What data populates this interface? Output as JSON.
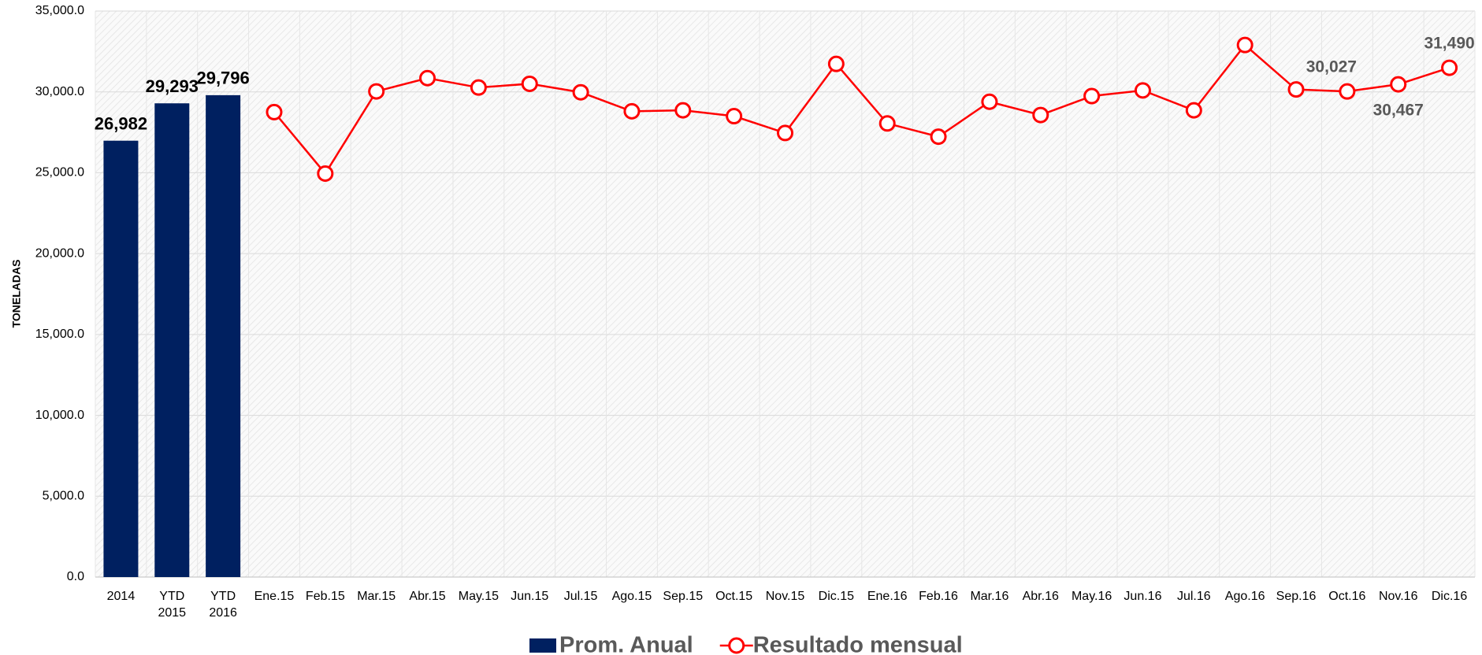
{
  "chart_data": {
    "type": "combo",
    "y_label": "TONELADAS",
    "categories": [
      "2014",
      "YTD 2015",
      "YTD 2016",
      "Ene.15",
      "Feb.15",
      "Mar.15",
      "Abr.15",
      "May.15",
      "Jun.15",
      "Jul.15",
      "Ago.15",
      "Sep.15",
      "Oct.15",
      "Nov.15",
      "Dic.15",
      "Ene.16",
      "Feb.16",
      "Mar.16",
      "Abr.16",
      "May.16",
      "Jun.16",
      "Jul.16",
      "Ago.16",
      "Sep.16",
      "Oct.16",
      "Nov.16",
      "Dic.16"
    ],
    "series": [
      {
        "name": "Prom. Anual",
        "type": "bar",
        "color": "#002060",
        "values": [
          26982,
          29293,
          29796,
          null,
          null,
          null,
          null,
          null,
          null,
          null,
          null,
          null,
          null,
          null,
          null,
          null,
          null,
          null,
          null,
          null,
          null,
          null,
          null,
          null,
          null,
          null,
          null
        ],
        "value_labels": [
          "26,982",
          "29,293",
          "29,796",
          null,
          null,
          null,
          null,
          null,
          null,
          null,
          null,
          null,
          null,
          null,
          null,
          null,
          null,
          null,
          null,
          null,
          null,
          null,
          null,
          null,
          null,
          null,
          null
        ]
      },
      {
        "name": "Resultado mensual",
        "type": "line",
        "color": "#ff0000",
        "values": [
          null,
          null,
          null,
          28750,
          24950,
          30030,
          30850,
          30270,
          30500,
          29975,
          28800,
          28860,
          28500,
          27460,
          31730,
          28050,
          27230,
          29390,
          28570,
          29740,
          30090,
          28860,
          32900,
          30150,
          30027,
          30467,
          31490
        ],
        "value_labels": [
          null,
          null,
          null,
          null,
          null,
          null,
          null,
          null,
          null,
          null,
          null,
          null,
          null,
          null,
          null,
          null,
          null,
          null,
          null,
          null,
          null,
          null,
          null,
          null,
          "30,027",
          "30,467",
          "31,490"
        ]
      }
    ],
    "ylim": [
      0,
      35000
    ],
    "yticks": [
      {
        "value": 0,
        "label": "0.0"
      },
      {
        "value": 5000,
        "label": "5,000.0"
      },
      {
        "value": 10000,
        "label": "10,000.0"
      },
      {
        "value": 15000,
        "label": "15,000.0"
      },
      {
        "value": 20000,
        "label": "20,000.0"
      },
      {
        "value": 25000,
        "label": "25,000.0"
      },
      {
        "value": 30000,
        "label": "30,000.0"
      },
      {
        "value": 35000,
        "label": "35,000.0"
      }
    ],
    "grid": true,
    "legend": "bottom"
  }
}
